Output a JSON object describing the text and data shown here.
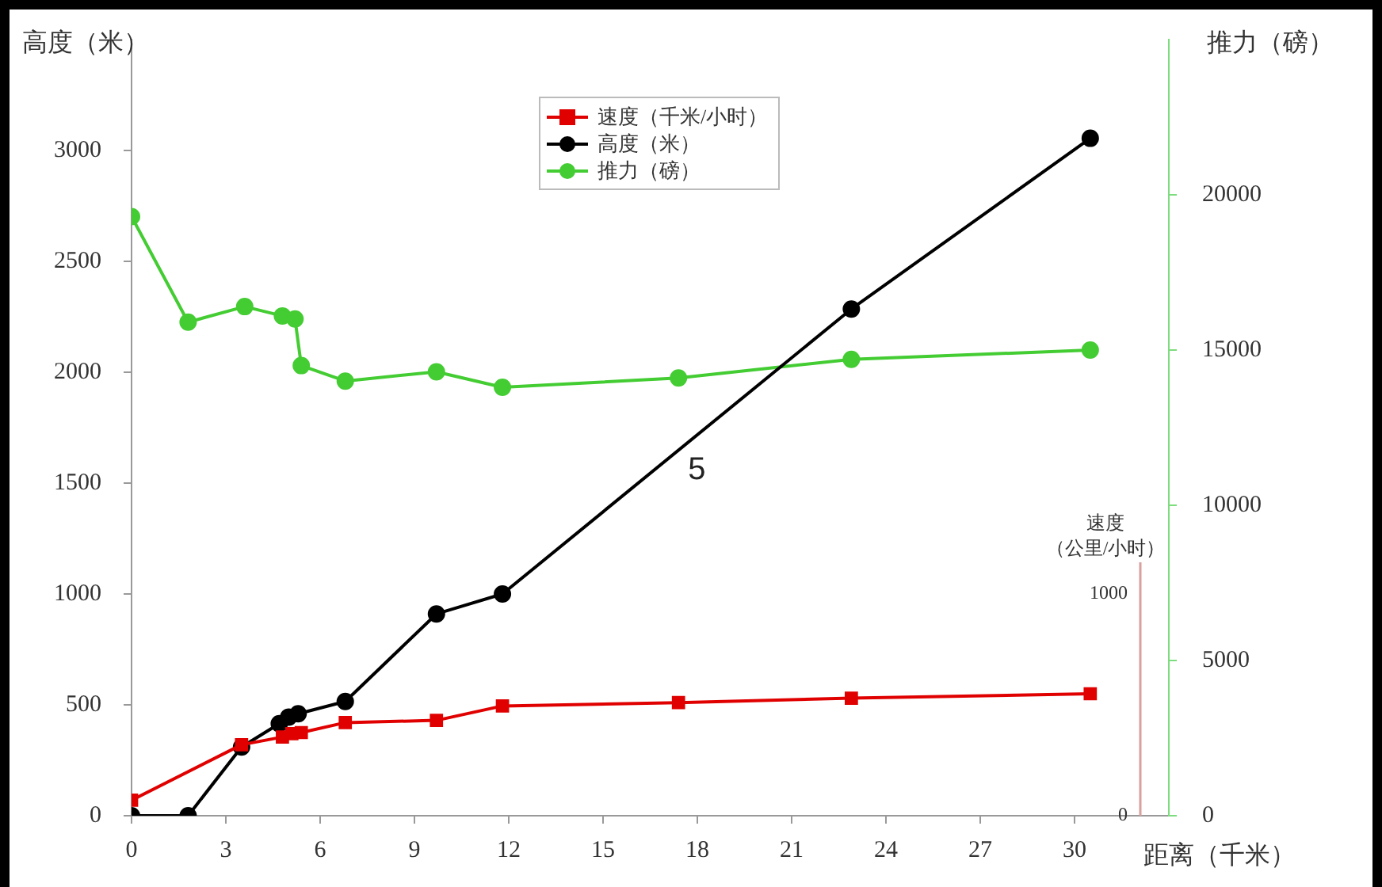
{
  "chart_data": {
    "type": "line",
    "xlabel": "距离（千米）",
    "ylabel": "高度（米）",
    "y2label": "推力（磅）",
    "y3label": "速度（公里/小时）",
    "xlim": [
      0,
      33
    ],
    "xticks": [
      0,
      3,
      6,
      9,
      12,
      15,
      18,
      21,
      24,
      27,
      30
    ],
    "ylim": [
      0,
      3500
    ],
    "yticks": [
      0,
      500,
      1000,
      1500,
      2000,
      2500,
      3000
    ],
    "y2lim": [
      0,
      25000
    ],
    "y2ticks": [
      0,
      5000,
      10000,
      15000,
      20000
    ],
    "y3lim": [
      0,
      3500
    ],
    "y3ticks": [
      0,
      1000
    ],
    "grid": false,
    "legend": "top",
    "line_style": "solid",
    "series": [
      {
        "name": "速度（千米/小时）",
        "color": "#e00000",
        "marker": "square",
        "axis": "y3",
        "x": [
          0,
          3.5,
          4.8,
          5.1,
          5.4,
          6.8,
          9.7,
          11.8,
          17.4,
          22.9,
          30.5
        ],
        "values": [
          70,
          320,
          355,
          370,
          375,
          420,
          430,
          495,
          510,
          530,
          550
        ]
      },
      {
        "name": "高度（米）",
        "color": "#000000",
        "marker": "circle",
        "axis": "y",
        "x": [
          0,
          1.8,
          3.5,
          4.7,
          5.0,
          5.3,
          6.8,
          9.7,
          11.8,
          22.9,
          30.5
        ],
        "values": [
          0,
          0,
          310,
          415,
          445,
          460,
          515,
          910,
          1000,
          2285,
          3055
        ]
      },
      {
        "name": "推力（磅）",
        "color": "#44cc33",
        "marker": "circle",
        "axis": "y2",
        "x": [
          0,
          1.8,
          3.6,
          4.8,
          5.2,
          5.4,
          6.8,
          9.7,
          11.8,
          17.4,
          22.9,
          30.5
        ],
        "values": [
          19300,
          15900,
          16400,
          16100,
          16000,
          14500,
          14000,
          14300,
          13800,
          14100,
          14700,
          15000
        ]
      }
    ],
    "annotations": [
      "5"
    ]
  }
}
